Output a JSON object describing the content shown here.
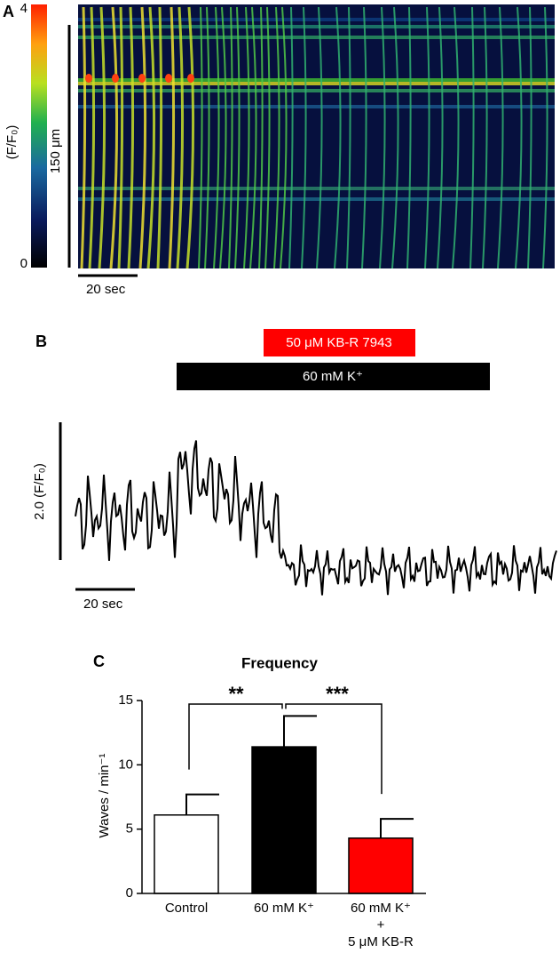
{
  "panel_a": {
    "label": "A",
    "colorbar_label": "(F/F₀)",
    "colorbar_ticks": [
      0,
      4
    ],
    "space_scale": "150 μm",
    "time_scale": "20 sec"
  },
  "panel_b": {
    "label": "B",
    "drug_bar": "50 μM KB-R 7943",
    "k_bar": "60 mM K⁺",
    "amplitude_scale": "2.0  (F/F₀)",
    "time_scale": "20 sec"
  },
  "chart_data": {
    "type": "bar",
    "panel_label": "C",
    "title": "Frequency",
    "y_label": "Waves / min⁻¹",
    "categories": [
      "Control",
      "60 mM K⁺",
      "60 mM K⁺\n+\n5 μM KB-R"
    ],
    "values": [
      6.1,
      11.4,
      4.3
    ],
    "errors": [
      1.6,
      2.4,
      1.5
    ],
    "colors": [
      "#ffffff",
      "#000000",
      "#ff0000"
    ],
    "ylim": [
      0,
      15
    ],
    "yticks": [
      0,
      5,
      10,
      15
    ],
    "significance": [
      "**",
      "***"
    ]
  }
}
